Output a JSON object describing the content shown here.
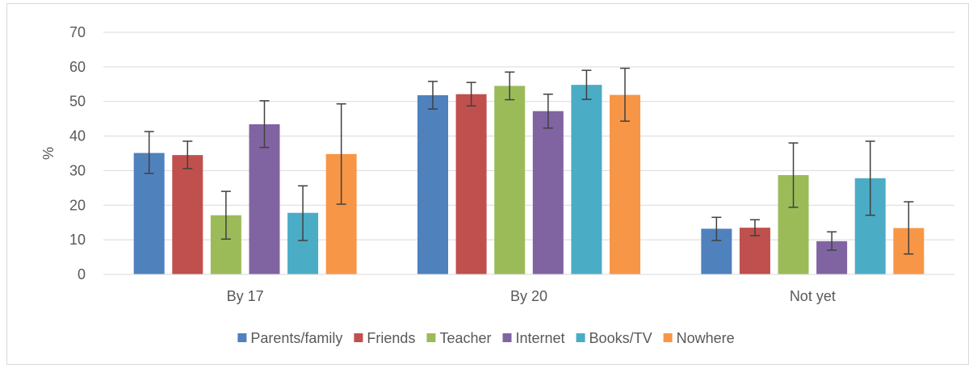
{
  "chart_data": {
    "type": "bar",
    "title": "",
    "xlabel": "",
    "ylabel": "%",
    "ylim": [
      0,
      70
    ],
    "yticks": [
      0,
      10,
      20,
      30,
      40,
      50,
      60,
      70
    ],
    "grid": true,
    "legend_position": "bottom",
    "error_bars": true,
    "categories": [
      "By 17",
      "By 20",
      "Not yet"
    ],
    "series": [
      {
        "name": "Parents/family",
        "color": "#4f81bd",
        "values": [
          35.1,
          51.8,
          13.2
        ],
        "err_low": [
          29.2,
          47.8,
          9.8
        ],
        "err_high": [
          41.3,
          55.8,
          16.5
        ]
      },
      {
        "name": "Friends",
        "color": "#c0504d",
        "values": [
          34.5,
          52.1,
          13.5
        ],
        "err_low": [
          30.6,
          48.7,
          11.2
        ],
        "err_high": [
          38.5,
          55.5,
          15.8
        ]
      },
      {
        "name": "Teacher",
        "color": "#9bbb59",
        "values": [
          17.1,
          54.5,
          28.7
        ],
        "err_low": [
          10.2,
          50.5,
          19.4
        ],
        "err_high": [
          24.0,
          58.5,
          38.0
        ]
      },
      {
        "name": "Internet",
        "color": "#8064a2",
        "values": [
          43.4,
          47.2,
          9.6
        ],
        "err_low": [
          36.7,
          42.3,
          7.0
        ],
        "err_high": [
          50.2,
          52.1,
          12.3
        ]
      },
      {
        "name": "Books/TV",
        "color": "#4bacc6",
        "values": [
          17.8,
          54.8,
          27.8
        ],
        "err_low": [
          9.8,
          50.6,
          17.1
        ],
        "err_high": [
          25.6,
          59.0,
          38.5
        ]
      },
      {
        "name": "Nowhere",
        "color": "#f79646",
        "values": [
          34.8,
          51.9,
          13.4
        ],
        "err_low": [
          20.3,
          44.3,
          5.9
        ],
        "err_high": [
          49.3,
          59.6,
          21.0
        ]
      }
    ]
  }
}
